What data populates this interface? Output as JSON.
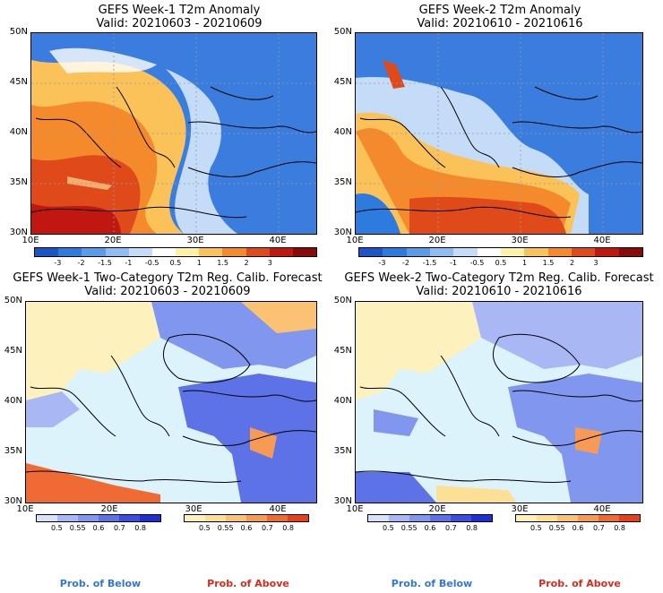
{
  "panels": [
    {
      "title1": "GEFS Week-1 T2m Anomaly",
      "title2": "Valid: 20210603 - 20210609"
    },
    {
      "title1": "GEFS Week-2 T2m Anomaly",
      "title2": "Valid: 20210610 - 20210616"
    },
    {
      "title1": "GEFS Week-1 Two-Category T2m Reg. Calib. Forecast",
      "title2": "Valid: 20210603 - 20210609"
    },
    {
      "title1": "GEFS Week-2 Two-Category T2m Reg. Calib. Forecast",
      "title2": "Valid: 20210610 - 20210616"
    }
  ],
  "lat_labels": [
    "50N",
    "45N",
    "40N",
    "35N",
    "30N"
  ],
  "lon_labels": [
    "10E",
    "20E",
    "30E",
    "40E"
  ],
  "anom_ticks": [
    "-3",
    "-2",
    "-1.5",
    "-1",
    "-0.5",
    "0.5",
    "1",
    "1.5",
    "2",
    "3"
  ],
  "anom_colors": [
    "#1c55c8",
    "#2e7be0",
    "#5a9bea",
    "#8fbdf2",
    "#c4dcf8",
    "#ffffff",
    "#fff1a8",
    "#fbc25a",
    "#f48a2c",
    "#e04a1a",
    "#c01810",
    "#8a0a08"
  ],
  "below_ticks": [
    "0.5",
    "0.55",
    "0.6",
    "0.7",
    "0.8"
  ],
  "above_ticks": [
    "0.5",
    "0.55",
    "0.6",
    "0.7",
    "0.8"
  ],
  "below_colors": [
    "#d8e0fb",
    "#a9b8f4",
    "#8196ee",
    "#5c72e6",
    "#3b4ee0",
    "#1f2fd6"
  ],
  "above_colors": [
    "#fdf1bd",
    "#fddf96",
    "#fcc273",
    "#f79a55",
    "#f06b34",
    "#e8401a"
  ],
  "prob_below": "Prob. of Below",
  "prob_above": "Prob. of Above",
  "colors": {
    "below_text": "#2d78d8",
    "above_text": "#e0281a",
    "sea": "#dcf3fb"
  }
}
